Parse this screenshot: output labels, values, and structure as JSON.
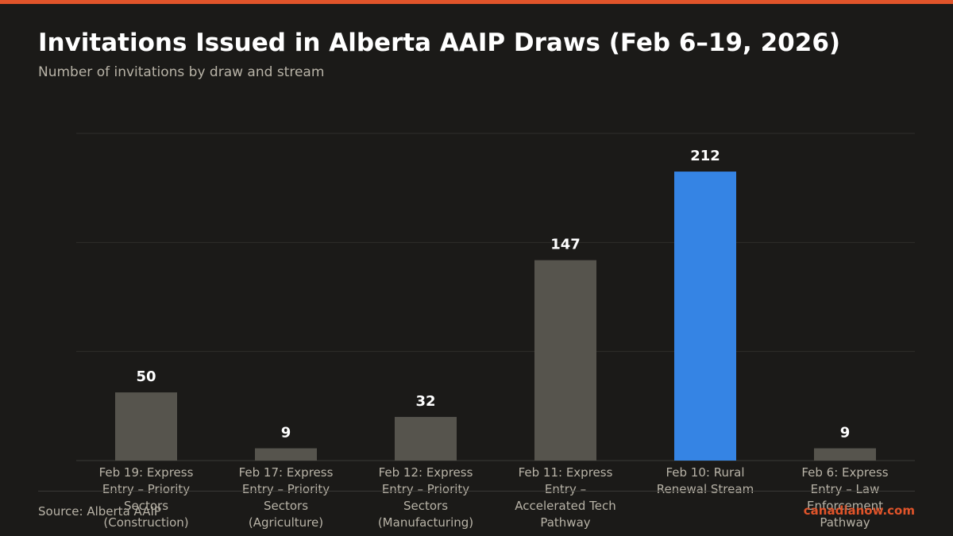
{
  "header": {
    "title": "Invitations Issued in Alberta AAIP Draws (Feb 6–19, 2026)",
    "subtitle": "Number of invitations by draw and stream"
  },
  "footer": {
    "source": "Source: Alberta AAIP",
    "brand": "canadianow.com"
  },
  "colors": {
    "accent": "#e0542a",
    "highlight_bar": "#3584e4",
    "default_bar": "#56544d",
    "background": "#1b1a18"
  },
  "chart_data": {
    "type": "bar",
    "title": "Invitations Issued in Alberta AAIP Draws (Feb 6–19, 2026)",
    "subtitle": "Number of invitations by draw and stream",
    "xlabel": "",
    "ylabel": "",
    "categories": [
      [
        "Feb 19: Express",
        "Entry – Priority",
        "Sectors",
        "(Construction)"
      ],
      [
        "Feb 17: Express",
        "Entry – Priority",
        "Sectors",
        "(Agriculture)"
      ],
      [
        "Feb 12: Express",
        "Entry – Priority",
        "Sectors",
        "(Manufacturing)"
      ],
      [
        "Feb 11: Express",
        "Entry –",
        "Accelerated Tech",
        "Pathway"
      ],
      [
        "Feb 10: Rural",
        "Renewal Stream"
      ],
      [
        "Feb 6: Express",
        "Entry – Law",
        "Enforcement",
        "Pathway"
      ]
    ],
    "values": [
      50,
      9,
      32,
      147,
      212,
      9
    ],
    "data_labels": [
      "50",
      "9",
      "32",
      "147",
      "212",
      "9"
    ],
    "highlight_index": 4,
    "ylim": [
      0,
      240
    ],
    "gridlines": [
      0,
      80,
      160,
      240
    ],
    "grid": true,
    "y_tick_labels_shown": false,
    "legend": "none"
  }
}
